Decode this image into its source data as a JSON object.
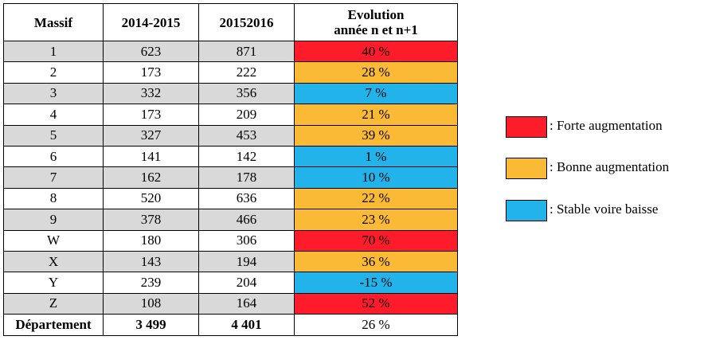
{
  "colors": {
    "forte": "#fe1c2b",
    "bonne": "#fbba35",
    "stable": "#22b3ea",
    "shade": "#d9d9d9"
  },
  "table": {
    "headers": {
      "massif": "Massif",
      "y1": "2014-2015",
      "y2": "20152016",
      "evo_line1": "Evolution",
      "evo_line2": "année n et n+1"
    },
    "rows": [
      {
        "massif": "1",
        "y1": "623",
        "y2": "871",
        "evo": "40 %",
        "cat": "forte",
        "shaded": true
      },
      {
        "massif": "2",
        "y1": "173",
        "y2": "222",
        "evo": "28 %",
        "cat": "bonne",
        "shaded": false
      },
      {
        "massif": "3",
        "y1": "332",
        "y2": "356",
        "evo": "7 %",
        "cat": "stable",
        "shaded": true
      },
      {
        "massif": "4",
        "y1": "173",
        "y2": "209",
        "evo": "21 %",
        "cat": "bonne",
        "shaded": false
      },
      {
        "massif": "5",
        "y1": "327",
        "y2": "453",
        "evo": "39 %",
        "cat": "bonne",
        "shaded": true
      },
      {
        "massif": "6",
        "y1": "141",
        "y2": "142",
        "evo": "1 %",
        "cat": "stable",
        "shaded": false
      },
      {
        "massif": "7",
        "y1": "162",
        "y2": "178",
        "evo": "10 %",
        "cat": "stable",
        "shaded": true
      },
      {
        "massif": "8",
        "y1": "520",
        "y2": "636",
        "evo": "22 %",
        "cat": "bonne",
        "shaded": false
      },
      {
        "massif": "9",
        "y1": "378",
        "y2": "466",
        "evo": "23 %",
        "cat": "bonne",
        "shaded": true
      },
      {
        "massif": "W",
        "y1": "180",
        "y2": "306",
        "evo": "70 %",
        "cat": "forte",
        "shaded": false
      },
      {
        "massif": "X",
        "y1": "143",
        "y2": "194",
        "evo": "36 %",
        "cat": "bonne",
        "shaded": true
      },
      {
        "massif": "Y",
        "y1": "239",
        "y2": "204",
        "evo": "-15 %",
        "cat": "stable",
        "shaded": false
      },
      {
        "massif": "Z",
        "y1": "108",
        "y2": "164",
        "evo": "52 %",
        "cat": "forte",
        "shaded": true
      }
    ],
    "total": {
      "massif": "Département",
      "y1": "3 499",
      "y2": "4 401",
      "evo": "26 %"
    }
  },
  "legend": [
    {
      "cat": "forte",
      "label": ": Forte augmentation"
    },
    {
      "cat": "bonne",
      "label": ": Bonne augmentation"
    },
    {
      "cat": "stable",
      "label": ": Stable voire baisse"
    }
  ]
}
